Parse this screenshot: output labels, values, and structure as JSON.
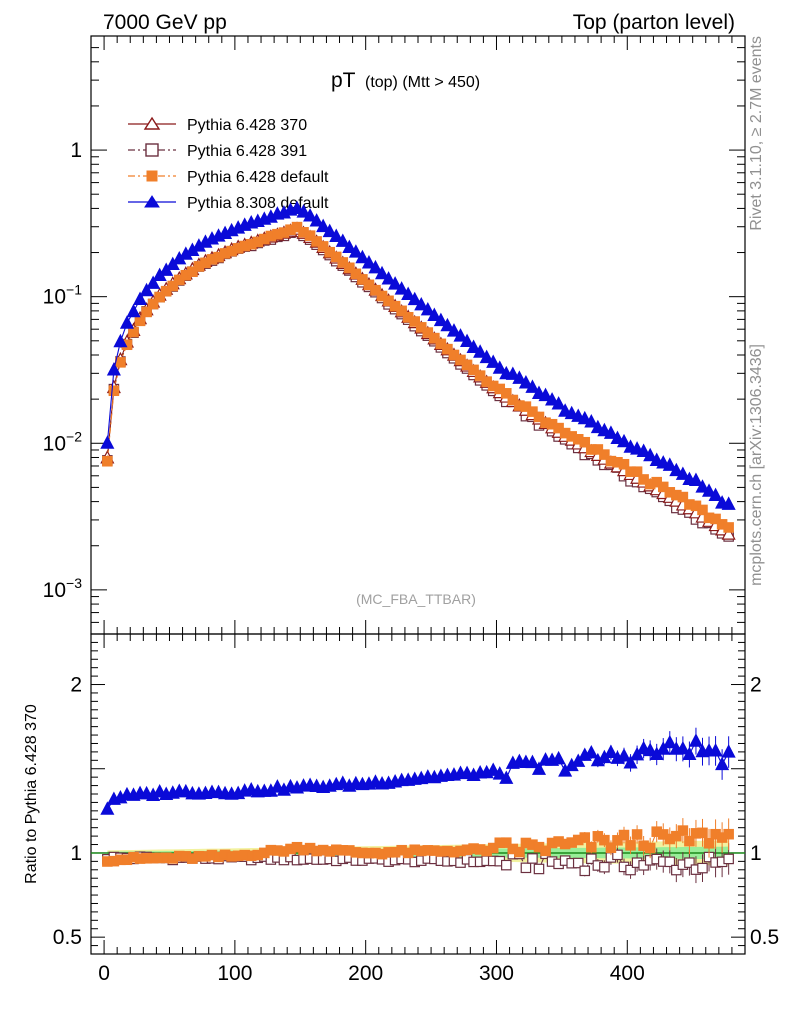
{
  "header": {
    "left": "7000 GeV pp",
    "right": "Top (parton level)"
  },
  "plot_title": {
    "main": "pT",
    "sub": "(top) (Mtt > 450)"
  },
  "watermark": "(MC_FBA_TTBAR)",
  "side_labels": {
    "rivet": "Rivet 3.1.10, ≥ 2.7M events",
    "mcplots": "mcplots.cern.ch [arXiv:1306.3436]"
  },
  "ratio_ylabel": "Ratio to Pythia 6.428 370",
  "colors": {
    "p370": "#8b1a1a",
    "p391": "#6b3040",
    "pdef": "#f07f2a",
    "p8": "#0a0ad8",
    "band_inner": "#98ee98",
    "band_outer": "#f2f2a0"
  },
  "chart_data": [
    {
      "type": "line",
      "panel": "main",
      "yscale": "log",
      "xlim": [
        -10,
        490
      ],
      "ylim": [
        0.0005,
        6
      ],
      "x_ticks": [
        "0",
        "100",
        "200",
        "300",
        "400"
      ],
      "y_ticks": [
        "10^-3",
        "10^-2",
        "10^-1",
        "1"
      ],
      "legend": [
        {
          "name": "Pythia 6.428 370",
          "key": "p370",
          "marker": "open-triangle",
          "dash": "solid"
        },
        {
          "name": "Pythia 6.428 391",
          "key": "p391",
          "marker": "open-square",
          "dash": "dashdot"
        },
        {
          "name": "Pythia 6.428 default",
          "key": "pdef",
          "marker": "filled-square",
          "dash": "dashdot"
        },
        {
          "name": "Pythia 8.308 default",
          "key": "p8",
          "marker": "filled-triangle",
          "dash": "solid"
        }
      ],
      "legend_position": "top-left",
      "x_range": [
        0,
        480
      ],
      "bin_width": 5,
      "note": "reference curve Pythia 6.428 370: log10 y at anchor x positions; other series = reference × ratio",
      "reference_anchors": {
        "x": [
          2.5,
          7.5,
          12.5,
          17.5,
          22.5,
          27.5,
          32.5,
          40,
          50,
          60,
          75,
          100,
          125,
          147.5,
          160,
          200,
          250,
          300,
          350,
          400,
          450,
          477.5
        ],
        "log10y": [
          -2.1,
          -1.62,
          -1.43,
          -1.31,
          -1.23,
          -1.15,
          -1.09,
          -1.01,
          -0.93,
          -0.86,
          -0.77,
          -0.67,
          -0.6,
          -0.54,
          -0.61,
          -0.9,
          -1.27,
          -1.64,
          -1.94,
          -2.2,
          -2.46,
          -2.62
        ]
      }
    },
    {
      "type": "line",
      "panel": "ratio",
      "ylim": [
        0.4,
        2.3
      ],
      "y_ticks": [
        "0.5",
        "1",
        "2"
      ],
      "reference_line": 1,
      "series": [
        {
          "name": "Pythia 6.428 391",
          "key": "p391",
          "values_anchor_x": [
            0,
            100,
            200,
            300,
            400,
            480
          ],
          "values": [
            0.97,
            0.97,
            0.96,
            0.95,
            0.94,
            0.93
          ]
        },
        {
          "name": "Pythia 6.428 default",
          "key": "pdef",
          "values_anchor_x": [
            0,
            100,
            150,
            200,
            300,
            350,
            400,
            480
          ],
          "values": [
            0.96,
            0.98,
            1.03,
            1.0,
            1.02,
            1.04,
            1.07,
            1.1
          ]
        },
        {
          "name": "Pythia 8.308 default",
          "key": "p8",
          "values_anchor_x": [
            0,
            5,
            10,
            50,
            100,
            150,
            200,
            250,
            300,
            350,
            400,
            450,
            480
          ],
          "values": [
            1.22,
            1.31,
            1.33,
            1.36,
            1.36,
            1.39,
            1.41,
            1.45,
            1.48,
            1.53,
            1.58,
            1.63,
            1.55
          ]
        }
      ]
    }
  ]
}
